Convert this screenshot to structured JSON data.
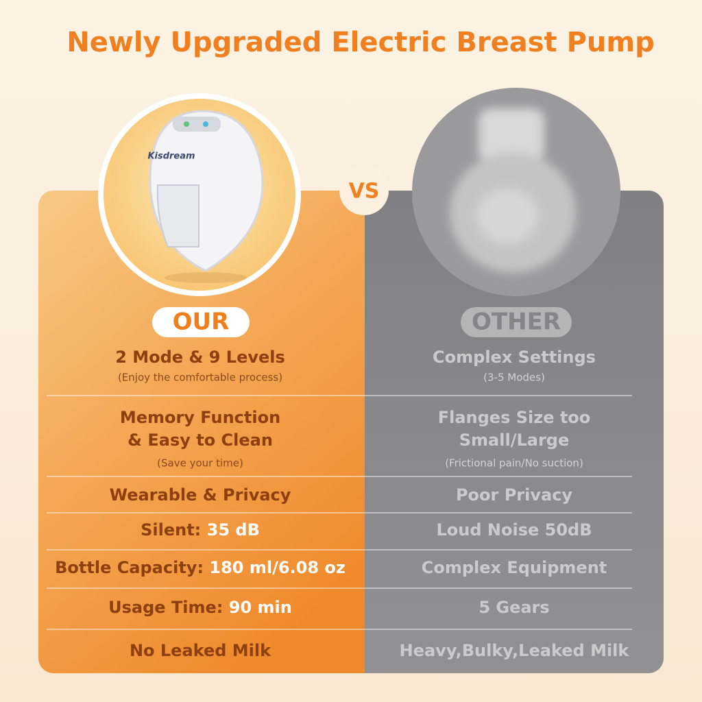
{
  "header": {
    "title": "Newly Upgraded Electric Breast Pump"
  },
  "product": {
    "brand": "Kisdream"
  },
  "vs": "VS",
  "columns": {
    "ours": "OUR",
    "other": "OTHER"
  },
  "rows": [
    {
      "ours": {
        "lines": [
          "2 Mode & 9 Levels"
        ],
        "note": "(Enjoy the comfortable process)"
      },
      "other": {
        "lines": [
          "Complex Settings"
        ],
        "note": "(3-5 Modes)"
      }
    },
    {
      "ours": {
        "lines": [
          "Memory Function",
          "& Easy to Clean"
        ],
        "note": "(Save your time)"
      },
      "other": {
        "lines": [
          "Flanges Size too",
          "Small/Large"
        ],
        "note": "(Frictional pain/No suction)"
      }
    },
    {
      "ours": {
        "lines": [
          "Wearable & Privacy"
        ]
      },
      "other": {
        "lines": [
          "Poor Privacy"
        ]
      }
    },
    {
      "ours": {
        "lines": [
          "Silent:"
        ],
        "value": "35 dB"
      },
      "other": {
        "lines": [
          "Loud Noise 50dB"
        ]
      }
    },
    {
      "ours": {
        "lines": [
          "Bottle Capacity:"
        ],
        "value": "180 ml/6.08 oz"
      },
      "other": {
        "lines": [
          "Complex Equipment"
        ]
      }
    },
    {
      "ours": {
        "lines": [
          "Usage Time:"
        ],
        "value": "90 min"
      },
      "other": {
        "lines": [
          "5 Gears"
        ]
      }
    },
    {
      "ours": {
        "lines": [
          "No Leaked Milk"
        ]
      },
      "other": {
        "lines": [
          "Heavy,Bulky,Leaked Milk"
        ]
      }
    }
  ]
}
